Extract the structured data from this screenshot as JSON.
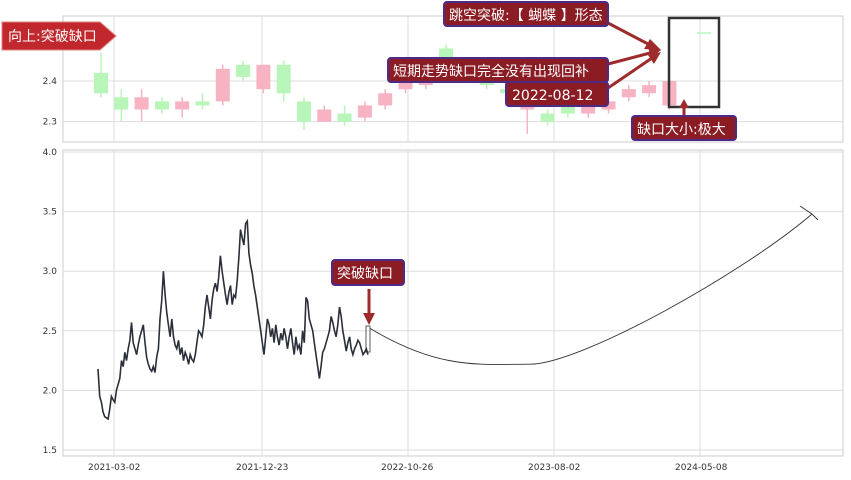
{
  "colors": {
    "up": "#b8f5b8",
    "down": "#f7b3c2",
    "line": "#2b2f3a",
    "grid": "#dddddd",
    "badge_fill": "#c0282d",
    "callout_fill": "#8b1c24",
    "callout_border": "#4b2a88",
    "arrow": "#9e2b2b",
    "box": "#333333"
  },
  "annotations": {
    "direction_badge": "向上:突破缺口",
    "pattern": "跳空突破:【 蝴蝶 】形态",
    "not_filled": "短期走势缺口完全没有出现回补",
    "date": "2022-08-12",
    "gap_size": "缺口大小:极大",
    "breakout": "突破缺口"
  },
  "chart_data": [
    {
      "type": "candlestick",
      "ylim": [
        2.25,
        2.56
      ],
      "yticks": [
        "2.3",
        "2.4"
      ],
      "candles": [
        {
          "o": 2.37,
          "c": 2.42,
          "h": 2.47,
          "l": 2.36
        },
        {
          "o": 2.33,
          "c": 2.36,
          "h": 2.38,
          "l": 2.3
        },
        {
          "o": 2.36,
          "c": 2.33,
          "h": 2.38,
          "l": 2.3
        },
        {
          "o": 2.33,
          "c": 2.35,
          "h": 2.36,
          "l": 2.32
        },
        {
          "o": 2.35,
          "c": 2.33,
          "h": 2.36,
          "l": 2.31
        },
        {
          "o": 2.34,
          "c": 2.35,
          "h": 2.37,
          "l": 2.33
        },
        {
          "o": 2.43,
          "c": 2.35,
          "h": 2.44,
          "l": 2.34
        },
        {
          "o": 2.41,
          "c": 2.44,
          "h": 2.45,
          "l": 2.4
        },
        {
          "o": 2.44,
          "c": 2.38,
          "h": 2.44,
          "l": 2.37
        },
        {
          "o": 2.37,
          "c": 2.44,
          "h": 2.45,
          "l": 2.35
        },
        {
          "o": 2.3,
          "c": 2.35,
          "h": 2.36,
          "l": 2.28
        },
        {
          "o": 2.33,
          "c": 2.3,
          "h": 2.34,
          "l": 2.3
        },
        {
          "o": 2.3,
          "c": 2.32,
          "h": 2.34,
          "l": 2.29
        },
        {
          "o": 2.34,
          "c": 2.31,
          "h": 2.35,
          "l": 2.3
        },
        {
          "o": 2.37,
          "c": 2.34,
          "h": 2.38,
          "l": 2.33
        },
        {
          "o": 2.4,
          "c": 2.38,
          "h": 2.42,
          "l": 2.37
        },
        {
          "o": 2.41,
          "c": 2.39,
          "h": 2.42,
          "l": 2.38
        },
        {
          "o": 2.45,
          "c": 2.48,
          "h": 2.49,
          "l": 2.44
        },
        {
          "o": 2.41,
          "c": 2.43,
          "h": 2.44,
          "l": 2.4
        },
        {
          "o": 2.39,
          "c": 2.4,
          "h": 2.41,
          "l": 2.38
        },
        {
          "o": 2.37,
          "c": 2.38,
          "h": 2.39,
          "l": 2.36
        },
        {
          "o": 2.35,
          "c": 2.33,
          "h": 2.36,
          "l": 2.27
        },
        {
          "o": 2.3,
          "c": 2.32,
          "h": 2.33,
          "l": 2.29
        },
        {
          "o": 2.32,
          "c": 2.34,
          "h": 2.35,
          "l": 2.31
        },
        {
          "o": 2.34,
          "c": 2.32,
          "h": 2.35,
          "l": 2.31
        },
        {
          "o": 2.35,
          "c": 2.33,
          "h": 2.36,
          "l": 2.32
        },
        {
          "o": 2.38,
          "c": 2.36,
          "h": 2.39,
          "l": 2.35
        },
        {
          "o": 2.39,
          "c": 2.37,
          "h": 2.4,
          "l": 2.36
        },
        {
          "o": 2.4,
          "c": 2.34,
          "h": 2.4,
          "l": 2.33
        },
        {
          "o": 2.52,
          "c": 2.52,
          "h": 2.52,
          "l": 2.52
        }
      ]
    },
    {
      "type": "line",
      "xticks": [
        "2021-03-02",
        "2021-12-23",
        "2022-10-26",
        "2023-08-02",
        "2024-05-08"
      ],
      "yticks": [
        "1.5",
        "2.0",
        "2.5",
        "3.0",
        "3.5",
        "4.0"
      ],
      "ylim": [
        1.45,
        4.0
      ],
      "series": [
        {
          "values": [
            2.18,
            1.95,
            1.9,
            1.82,
            1.78,
            1.77,
            1.76,
            1.84,
            1.95,
            1.92,
            1.9,
            2.0,
            2.05,
            2.1,
            2.25,
            2.2,
            2.32,
            2.25,
            2.35,
            2.42,
            2.57,
            2.4,
            2.35,
            2.3,
            2.38,
            2.45,
            2.5,
            2.55,
            2.4,
            2.28,
            2.22,
            2.18,
            2.16,
            2.2,
            2.15,
            2.28,
            2.35,
            2.6,
            2.75,
            3.0,
            2.8,
            2.65,
            2.55,
            2.45,
            2.6,
            2.45,
            2.38,
            2.35,
            2.42,
            2.3,
            2.36,
            2.25,
            2.32,
            2.28,
            2.22,
            2.3,
            2.26,
            2.24,
            2.3,
            2.4,
            2.5,
            2.48,
            2.45,
            2.55,
            2.7,
            2.8,
            2.7,
            2.6,
            2.75,
            2.85,
            2.9,
            2.83,
            2.95,
            3.13,
            3.0,
            2.9,
            2.8,
            2.72,
            2.82,
            2.88,
            2.72,
            2.8,
            2.78,
            2.92,
            3.12,
            3.35,
            3.28,
            3.22,
            3.4,
            3.42,
            3.15,
            3.05,
            2.98,
            2.87,
            2.8,
            2.7,
            2.6,
            2.5,
            2.4,
            2.3,
            2.45,
            2.6,
            2.55,
            2.45,
            2.52,
            2.4,
            2.55,
            2.45,
            2.38,
            2.48,
            2.42,
            2.52,
            2.45,
            2.35,
            2.45,
            2.52,
            2.4,
            2.3,
            2.45,
            2.35,
            2.38,
            2.3,
            2.5,
            2.4,
            2.78,
            2.75,
            2.6,
            2.55,
            2.5,
            2.4,
            2.3,
            2.2,
            2.1,
            2.2,
            2.32,
            2.35,
            2.4,
            2.45,
            2.5,
            2.62,
            2.57,
            2.5,
            2.45,
            2.55,
            2.7,
            2.62,
            2.5,
            2.42,
            2.33,
            2.4,
            2.45,
            2.35,
            2.3,
            2.35,
            2.38,
            2.42,
            2.4,
            2.35,
            2.3,
            2.32,
            2.35,
            2.3
          ]
        }
      ],
      "projection": {
        "start": 2.52,
        "min": 2.22,
        "end": 3.48,
        "min_date": "2023-08-02"
      }
    }
  ]
}
